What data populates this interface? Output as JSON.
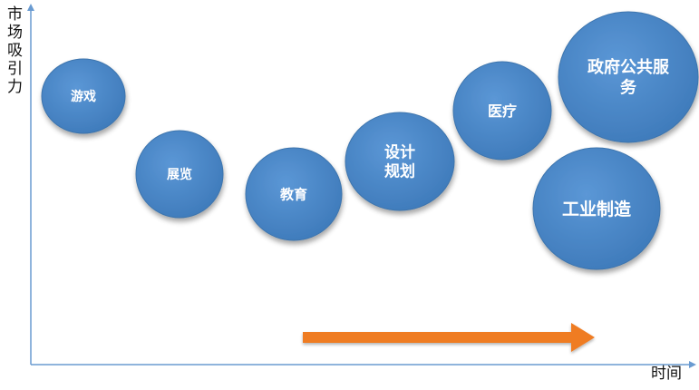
{
  "axes": {
    "y_label": "市场吸引力",
    "x_label": "时间"
  },
  "colors": {
    "bubble_fill": "#4a86c5",
    "bubble_stroke": "#3d74ad",
    "axis": "#6a9bd1",
    "arrow": "#ef7c22"
  },
  "bubbles": [
    {
      "id": "games",
      "lines": [
        "游戏"
      ]
    },
    {
      "id": "exhibition",
      "lines": [
        "展览"
      ]
    },
    {
      "id": "education",
      "lines": [
        "教育"
      ]
    },
    {
      "id": "design-planning",
      "lines": [
        "设计",
        "规划"
      ]
    },
    {
      "id": "medical",
      "lines": [
        "医疗"
      ]
    },
    {
      "id": "government-public-services",
      "lines": [
        "政府公共服",
        "务"
      ]
    },
    {
      "id": "industrial-manufacturing",
      "lines": [
        "工业制造"
      ]
    }
  ]
}
